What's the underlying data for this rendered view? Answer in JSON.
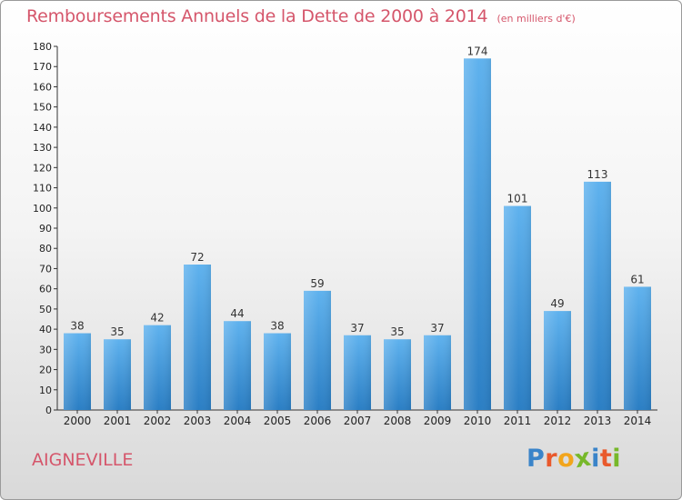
{
  "header": {
    "title": "Remboursements Annuels de la Dette de 2000 à 2014",
    "unit": "(en milliers d'€)"
  },
  "footer": {
    "city": "AIGNEVILLE",
    "logo_letters": [
      "P",
      "r",
      "o",
      "x",
      "i",
      "t",
      "i"
    ],
    "logo_colors": [
      "#3a84c9",
      "#e9592c",
      "#f2a51c",
      "#77b82a",
      "#3a84c9",
      "#e9592c",
      "#77b82a"
    ]
  },
  "colors": {
    "bar_light": "#5fb2ee",
    "bar_dark": "#2a7ec4",
    "title": "#d5566b"
  },
  "chart_data": {
    "type": "bar",
    "title": "Remboursements Annuels de la Dette de 2000 à 2014",
    "subtitle": "(en milliers d'€)",
    "categories": [
      "2000",
      "2001",
      "2002",
      "2003",
      "2004",
      "2005",
      "2006",
      "2007",
      "2008",
      "2009",
      "2010",
      "2011",
      "2012",
      "2013",
      "2014"
    ],
    "values": [
      38,
      35,
      42,
      72,
      44,
      38,
      59,
      37,
      35,
      37,
      174,
      101,
      49,
      113,
      61
    ],
    "ylim": [
      0,
      180
    ],
    "yticks": [
      0,
      10,
      20,
      30,
      40,
      50,
      60,
      70,
      80,
      90,
      100,
      110,
      120,
      130,
      140,
      150,
      160,
      170,
      180
    ],
    "grid": false,
    "data_labels": true
  }
}
